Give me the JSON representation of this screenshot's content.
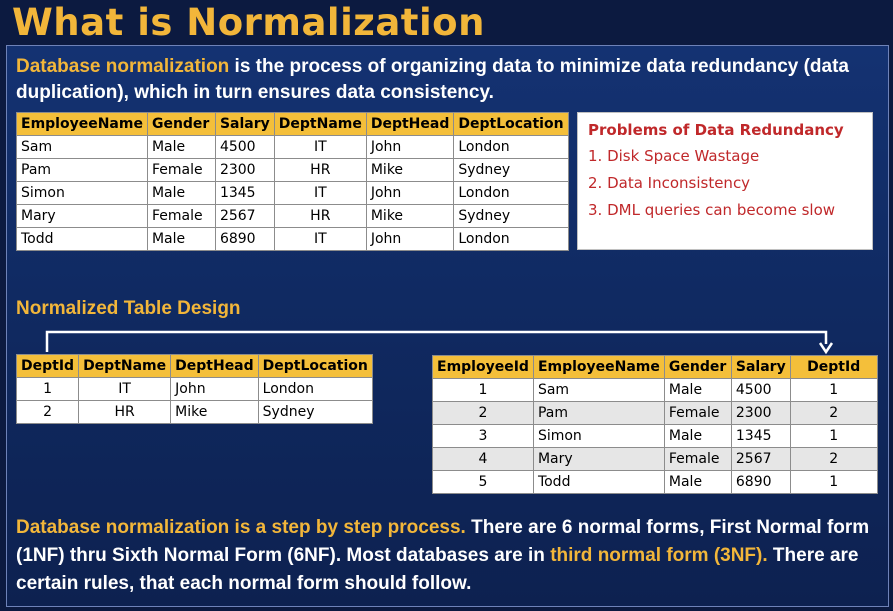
{
  "title": "What is Normalization",
  "intro": {
    "highlight": "Database normalization",
    "rest": " is the process of organizing data to minimize data redundancy (data duplication), which in turn ensures data consistency."
  },
  "employee_table": {
    "headers": [
      "EmployeeName",
      "Gender",
      "Salary",
      "DeptName",
      "DeptHead",
      "DeptLocation"
    ],
    "rows": [
      [
        "Sam",
        "Male",
        "4500",
        "IT",
        "John",
        "London"
      ],
      [
        "Pam",
        "Female",
        "2300",
        "HR",
        "Mike",
        "Sydney"
      ],
      [
        "Simon",
        "Male",
        "1345",
        "IT",
        "John",
        "London"
      ],
      [
        "Mary",
        "Female",
        "2567",
        "HR",
        "Mike",
        "Sydney"
      ],
      [
        "Todd",
        "Male",
        "6890",
        "IT",
        "John",
        "London"
      ]
    ]
  },
  "problems": {
    "heading": "Problems of Data Redundancy",
    "items": [
      "1. Disk Space Wastage",
      "2. Data Inconsistency",
      "3. DML queries can become slow"
    ]
  },
  "normalized_heading": "Normalized Table Design",
  "dept_table": {
    "headers": [
      "DeptId",
      "DeptName",
      "DeptHead",
      "DeptLocation"
    ],
    "rows": [
      [
        "1",
        "IT",
        "John",
        "London"
      ],
      [
        "2",
        "HR",
        "Mike",
        "Sydney"
      ]
    ]
  },
  "emp_norm_table": {
    "headers": [
      "EmployeeId",
      "EmployeeName",
      "Gender",
      "Salary",
      "DeptId"
    ],
    "rows": [
      [
        "1",
        "Sam",
        "Male",
        "4500",
        "1"
      ],
      [
        "2",
        "Pam",
        "Female",
        "2300",
        "2"
      ],
      [
        "3",
        "Simon",
        "Male",
        "1345",
        "1"
      ],
      [
        "4",
        "Mary",
        "Female",
        "2567",
        "2"
      ],
      [
        "5",
        "Todd",
        "Male",
        "6890",
        "1"
      ]
    ]
  },
  "footer": {
    "p1": "Database normalization is a step by step process.",
    "p2": " There are 6 normal forms, First Normal form (1NF) thru Sixth Normal Form (6NF). Most databases are in ",
    "p3": "third normal form (3NF).",
    "p4": " There are certain rules, that each normal form should follow."
  },
  "colors": {
    "background": "#0c1a40",
    "accent": "#f2b63a",
    "header_fill": "#f4bf3a",
    "problem_text": "#c0282a"
  }
}
